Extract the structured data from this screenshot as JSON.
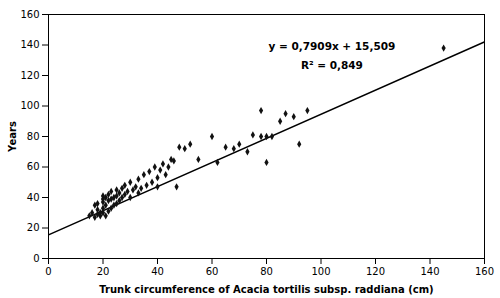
{
  "chart_data": {
    "type": "scatter",
    "xlabel": "Trunk circumference of Acacia tortilis subsp. raddiana (cm)",
    "ylabel": "Years",
    "x": [
      15,
      16,
      17,
      17,
      18,
      18,
      18,
      19,
      19,
      20,
      20,
      20,
      20,
      20,
      21,
      21,
      21,
      22,
      22,
      22,
      23,
      23,
      23,
      24,
      24,
      25,
      25,
      25,
      26,
      26,
      27,
      27,
      28,
      28,
      29,
      30,
      30,
      31,
      32,
      33,
      33,
      34,
      35,
      36,
      37,
      38,
      39,
      40,
      40,
      41,
      42,
      43,
      44,
      45,
      46,
      47,
      48,
      50,
      52,
      55,
      60,
      62,
      65,
      68,
      70,
      73,
      75,
      78,
      78,
      80,
      80,
      82,
      85,
      87,
      90,
      92,
      95,
      145
    ],
    "values": [
      28,
      30,
      27,
      35,
      29,
      32,
      36,
      28,
      30,
      30,
      33,
      37,
      39,
      41,
      28,
      35,
      40,
      31,
      38,
      42,
      33,
      39,
      44,
      35,
      40,
      36,
      41,
      45,
      38,
      43,
      40,
      46,
      42,
      48,
      44,
      40,
      50,
      45,
      47,
      43,
      52,
      46,
      55,
      48,
      57,
      50,
      60,
      47,
      53,
      58,
      62,
      55,
      60,
      65,
      64,
      47,
      73,
      72,
      75,
      65,
      80,
      63,
      73,
      72,
      75,
      70,
      81,
      80,
      97,
      80,
      63,
      80,
      90,
      95,
      93,
      75,
      97,
      138
    ],
    "color": "#111111",
    "marker": "diamond",
    "trend_line": {
      "x": [
        0,
        160
      ],
      "values": [
        15.509,
        142.053
      ],
      "color": "black"
    },
    "annotations": [
      "y = 0,7909x + 15,509",
      "R² = 0,849"
    ],
    "xlim": [
      0,
      160
    ],
    "ylim": [
      0,
      160
    ],
    "xticks": [
      0,
      20,
      40,
      60,
      80,
      100,
      120,
      140,
      160
    ],
    "yticks": [
      0,
      20,
      40,
      60,
      80,
      100,
      120,
      140,
      160
    ],
    "grid": false
  }
}
